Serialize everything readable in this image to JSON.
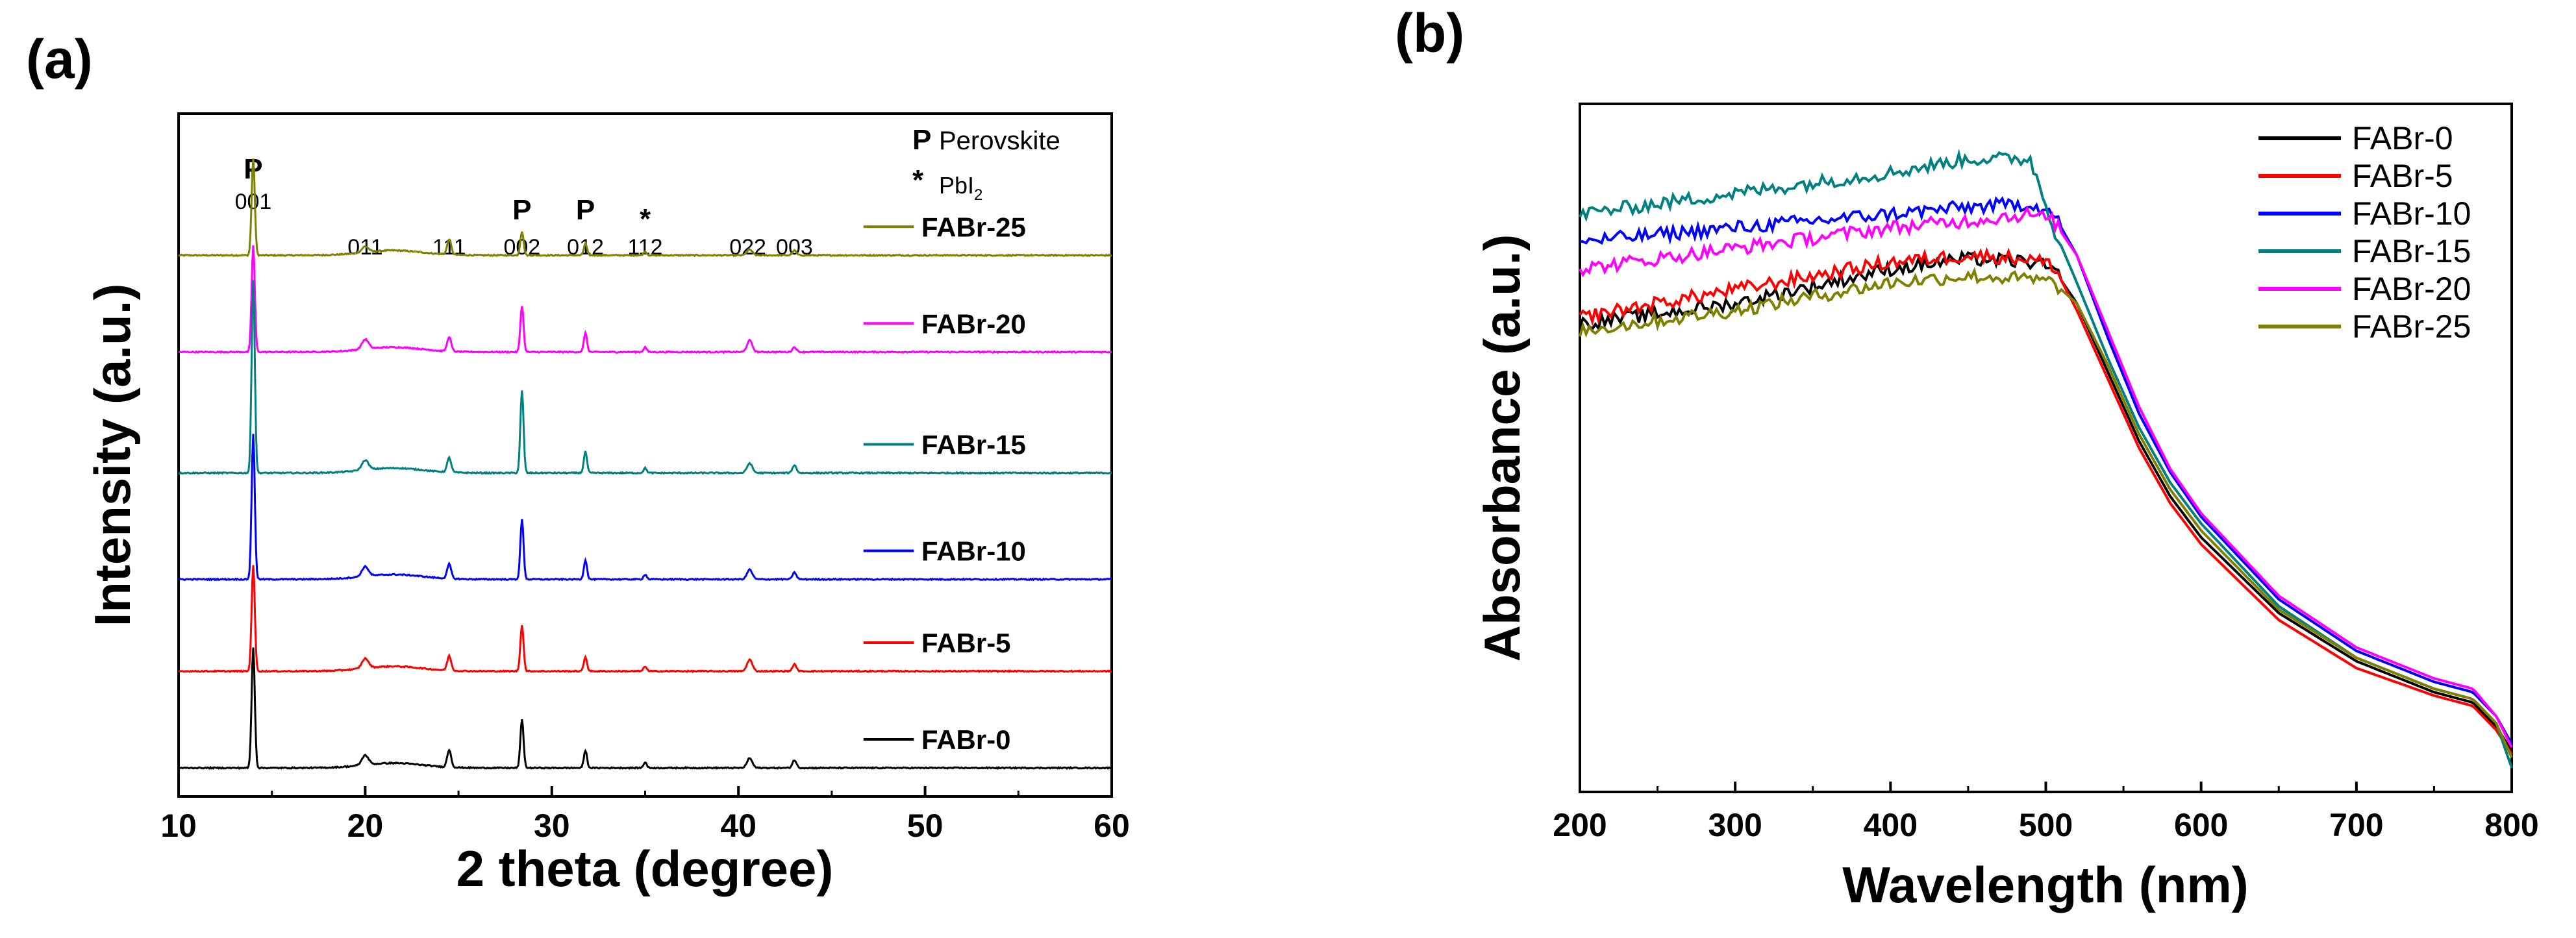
{
  "chart_data": [
    {
      "panel": "(a)",
      "type": "line",
      "xlabel": "2 theta (degree)",
      "ylabel": "Intensity (a.u.)",
      "xlim": [
        10,
        60
      ],
      "xticks": [
        10,
        20,
        30,
        40,
        50,
        60
      ],
      "yticks_shown": false,
      "legend_placement": "inline-right",
      "key": [
        {
          "symbol": "P",
          "text": "Perovskite"
        },
        {
          "symbol": "*",
          "text": "PbI",
          "subscript": "2"
        }
      ],
      "peak_labels": [
        {
          "x": 14.0,
          "marker": "P",
          "index": "001"
        },
        {
          "x": 20.0,
          "marker": "",
          "index": "011"
        },
        {
          "x": 24.5,
          "marker": "",
          "index": "111"
        },
        {
          "x": 28.4,
          "marker": "P",
          "index": "002"
        },
        {
          "x": 31.8,
          "marker": "P",
          "index": "012"
        },
        {
          "x": 35.0,
          "marker": "*",
          "index": "112"
        },
        {
          "x": 40.5,
          "marker": "",
          "index": "022"
        },
        {
          "x": 43.0,
          "marker": "",
          "index": "003"
        }
      ],
      "peaks": [
        {
          "x": 14.0,
          "w": 0.12
        },
        {
          "x": 20.0,
          "w": 0.25
        },
        {
          "x": 24.5,
          "w": 0.15
        },
        {
          "x": 28.4,
          "w": 0.12
        },
        {
          "x": 31.8,
          "w": 0.12
        },
        {
          "x": 35.0,
          "w": 0.12
        },
        {
          "x": 40.6,
          "w": 0.2
        },
        {
          "x": 43.0,
          "w": 0.15
        }
      ],
      "series": [
        {
          "name": "FABr-25",
          "color": "#808000",
          "offset": 5.3,
          "amps": [
            1.0,
            0.06,
            0.16,
            0.25,
            0.12,
            0.04,
            0.06,
            0.05
          ]
        },
        {
          "name": "FABr-20",
          "color": "#FF00FF",
          "offset": 4.3,
          "amps": [
            1.1,
            0.1,
            0.15,
            0.48,
            0.2,
            0.05,
            0.12,
            0.05
          ]
        },
        {
          "name": "FABr-15",
          "color": "#008080",
          "offset": 3.05,
          "amps": [
            2.0,
            0.1,
            0.15,
            0.85,
            0.22,
            0.05,
            0.1,
            0.08
          ]
        },
        {
          "name": "FABr-10",
          "color": "#0000FF",
          "offset": 1.95,
          "amps": [
            1.5,
            0.1,
            0.15,
            0.62,
            0.2,
            0.05,
            0.1,
            0.07
          ]
        },
        {
          "name": "FABr-5",
          "color": "#FF0000",
          "offset": 1.0,
          "amps": [
            1.1,
            0.1,
            0.15,
            0.48,
            0.15,
            0.05,
            0.12,
            0.07
          ]
        },
        {
          "name": "FABr-0",
          "color": "#000000",
          "offset": 0.0,
          "amps": [
            1.25,
            0.1,
            0.18,
            0.5,
            0.18,
            0.06,
            0.1,
            0.08
          ]
        }
      ]
    },
    {
      "panel": "(b)",
      "type": "line",
      "xlabel": "Wavelength (nm)",
      "ylabel": "Absorbance (a.u.)",
      "xlim": [
        200,
        800
      ],
      "ylim": [
        0,
        1
      ],
      "xticks": [
        200,
        300,
        400,
        500,
        600,
        700,
        800
      ],
      "yticks_shown": false,
      "legend_placement": "top-right",
      "x": [
        200,
        300,
        400,
        450,
        490,
        505,
        520,
        540,
        560,
        580,
        600,
        650,
        700,
        750,
        775,
        790,
        800
      ],
      "series": [
        {
          "name": "FABr-0",
          "color": "#000000",
          "y": [
            0.68,
            0.71,
            0.76,
            0.775,
            0.77,
            0.76,
            0.71,
            0.61,
            0.51,
            0.43,
            0.37,
            0.26,
            0.19,
            0.145,
            0.13,
            0.095,
            0.06
          ]
        },
        {
          "name": "FABr-5",
          "color": "#FF0000",
          "y": [
            0.69,
            0.73,
            0.77,
            0.78,
            0.775,
            0.765,
            0.7,
            0.6,
            0.5,
            0.42,
            0.36,
            0.25,
            0.18,
            0.14,
            0.125,
            0.09,
            0.055
          ]
        },
        {
          "name": "FABr-10",
          "color": "#0000FF",
          "y": [
            0.8,
            0.82,
            0.84,
            0.85,
            0.855,
            0.84,
            0.78,
            0.66,
            0.55,
            0.465,
            0.4,
            0.28,
            0.205,
            0.16,
            0.145,
            0.11,
            0.07
          ]
        },
        {
          "name": "FABr-15",
          "color": "#008080",
          "y": [
            0.84,
            0.87,
            0.9,
            0.92,
            0.92,
            0.82,
            0.74,
            0.63,
            0.53,
            0.45,
            0.39,
            0.27,
            0.195,
            0.15,
            0.135,
            0.1,
            0.035
          ]
        },
        {
          "name": "FABr-20",
          "color": "#FF00FF",
          "y": [
            0.76,
            0.79,
            0.82,
            0.83,
            0.84,
            0.83,
            0.78,
            0.67,
            0.56,
            0.47,
            0.405,
            0.285,
            0.21,
            0.165,
            0.15,
            0.11,
            0.065
          ]
        },
        {
          "name": "FABr-25",
          "color": "#808000",
          "y": [
            0.67,
            0.7,
            0.74,
            0.75,
            0.745,
            0.74,
            0.71,
            0.62,
            0.52,
            0.44,
            0.38,
            0.265,
            0.195,
            0.15,
            0.135,
            0.1,
            0.05
          ]
        }
      ]
    }
  ]
}
